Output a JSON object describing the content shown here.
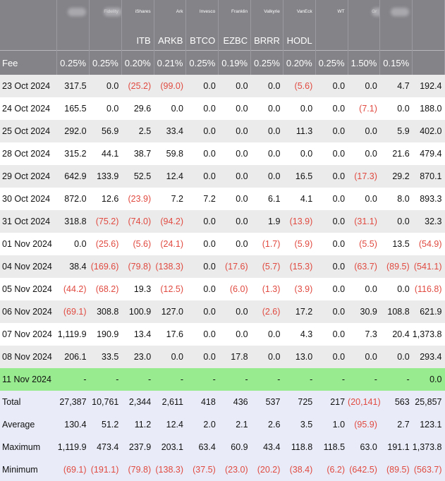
{
  "header": {
    "issuers": [
      "",
      "",
      "Fidelity",
      "iShares",
      "Ark",
      "Invesco",
      "Franklin",
      "Valkyrie",
      "VanEck",
      "WT",
      "Gr",
      "",
      ""
    ],
    "issuer_blurred": [
      false,
      true,
      true,
      false,
      false,
      false,
      false,
      false,
      false,
      false,
      true,
      true,
      false
    ],
    "tickers": [
      "",
      "",
      "",
      "ITB",
      "ARKB",
      "BTCO",
      "EZBC",
      "BRRR",
      "HODL",
      "",
      "",
      "",
      ""
    ],
    "fee_label": "Fee",
    "fees": [
      "0.25%",
      "0.25%",
      "0.20%",
      "0.21%",
      "0.25%",
      "0.19%",
      "0.25%",
      "0.20%",
      "0.25%",
      "1.50%",
      "0.15%",
      ""
    ]
  },
  "rows": [
    {
      "date": "23 Oct 2024",
      "values": [
        "317.5",
        "0.0",
        "(25.2)",
        "(99.0)",
        "0.0",
        "0.0",
        "0.0",
        "(5.6)",
        "0.0",
        "0.0",
        "4.7",
        "192.4"
      ]
    },
    {
      "date": "24 Oct 2024",
      "values": [
        "165.5",
        "0.0",
        "29.6",
        "0.0",
        "0.0",
        "0.0",
        "0.0",
        "0.0",
        "0.0",
        "(7.1)",
        "0.0",
        "188.0"
      ]
    },
    {
      "date": "25 Oct 2024",
      "values": [
        "292.0",
        "56.9",
        "2.5",
        "33.4",
        "0.0",
        "0.0",
        "0.0",
        "11.3",
        "0.0",
        "0.0",
        "5.9",
        "402.0"
      ]
    },
    {
      "date": "28 Oct 2024",
      "values": [
        "315.2",
        "44.1",
        "38.7",
        "59.8",
        "0.0",
        "0.0",
        "0.0",
        "0.0",
        "0.0",
        "0.0",
        "21.6",
        "479.4"
      ]
    },
    {
      "date": "29 Oct 2024",
      "values": [
        "642.9",
        "133.9",
        "52.5",
        "12.4",
        "0.0",
        "0.0",
        "0.0",
        "16.5",
        "0.0",
        "(17.3)",
        "29.2",
        "870.1"
      ]
    },
    {
      "date": "30 Oct 2024",
      "values": [
        "872.0",
        "12.6",
        "(23.9)",
        "7.2",
        "7.2",
        "0.0",
        "6.1",
        "4.1",
        "0.0",
        "0.0",
        "8.0",
        "893.3"
      ]
    },
    {
      "date": "31 Oct 2024",
      "values": [
        "318.8",
        "(75.2)",
        "(74.0)",
        "(94.2)",
        "0.0",
        "0.0",
        "1.9",
        "(13.9)",
        "0.0",
        "(31.1)",
        "0.0",
        "32.3"
      ]
    },
    {
      "date": "01 Nov 2024",
      "values": [
        "0.0",
        "(25.6)",
        "(5.6)",
        "(24.1)",
        "0.0",
        "0.0",
        "(1.7)",
        "(5.9)",
        "0.0",
        "(5.5)",
        "13.5",
        "(54.9)"
      ]
    },
    {
      "date": "04 Nov 2024",
      "values": [
        "38.4",
        "(169.6)",
        "(79.8)",
        "(138.3)",
        "0.0",
        "(17.6)",
        "(5.7)",
        "(15.3)",
        "0.0",
        "(63.7)",
        "(89.5)",
        "(541.1)"
      ]
    },
    {
      "date": "05 Nov 2024",
      "values": [
        "(44.2)",
        "(68.2)",
        "19.3",
        "(12.5)",
        "0.0",
        "(6.0)",
        "(1.3)",
        "(3.9)",
        "0.0",
        "0.0",
        "0.0",
        "(116.8)"
      ]
    },
    {
      "date": "06 Nov 2024",
      "values": [
        "(69.1)",
        "308.8",
        "100.9",
        "127.0",
        "0.0",
        "0.0",
        "(2.6)",
        "17.2",
        "0.0",
        "30.9",
        "108.8",
        "621.9"
      ]
    },
    {
      "date": "07 Nov 2024",
      "values": [
        "1,119.9",
        "190.9",
        "13.4",
        "17.6",
        "0.0",
        "0.0",
        "0.0",
        "4.3",
        "0.0",
        "7.3",
        "20.4",
        "1,373.8"
      ]
    },
    {
      "date": "08 Nov 2024",
      "values": [
        "206.1",
        "33.5",
        "23.0",
        "0.0",
        "0.0",
        "17.8",
        "0.0",
        "13.0",
        "0.0",
        "0.0",
        "0.0",
        "293.4"
      ]
    }
  ],
  "current_row": {
    "date": "11 Nov 2024",
    "values": [
      "-",
      "-",
      "-",
      "-",
      "-",
      "-",
      "-",
      "-",
      "-",
      "-",
      "-",
      "0.0"
    ]
  },
  "summary": [
    {
      "label": "Total",
      "values": [
        "27,387",
        "10,761",
        "2,344",
        "2,611",
        "418",
        "436",
        "537",
        "725",
        "217",
        "(20,141)",
        "563",
        "25,857"
      ]
    },
    {
      "label": "Average",
      "values": [
        "130.4",
        "51.2",
        "11.2",
        "12.4",
        "2.0",
        "2.1",
        "2.6",
        "3.5",
        "1.0",
        "(95.9)",
        "2.7",
        "123.1"
      ]
    },
    {
      "label": "Maximum",
      "values": [
        "1,119.9",
        "473.4",
        "237.9",
        "203.1",
        "63.4",
        "60.9",
        "43.4",
        "118.8",
        "118.5",
        "63.0",
        "191.1",
        "1,373.8"
      ]
    },
    {
      "label": "Minimum",
      "values": [
        "(69.1)",
        "(191.1)",
        "(79.8)",
        "(138.3)",
        "(37.5)",
        "(23.0)",
        "(20.2)",
        "(38.4)",
        "(6.2)",
        "(642.5)",
        "(89.5)",
        "(563.7)"
      ]
    }
  ],
  "colors": {
    "header_bg": "#838388",
    "row_alt": "#ebebeb",
    "current_row": "#98ec8f",
    "summary_bg": "#e9ecf8",
    "negative": "#e04a40"
  }
}
